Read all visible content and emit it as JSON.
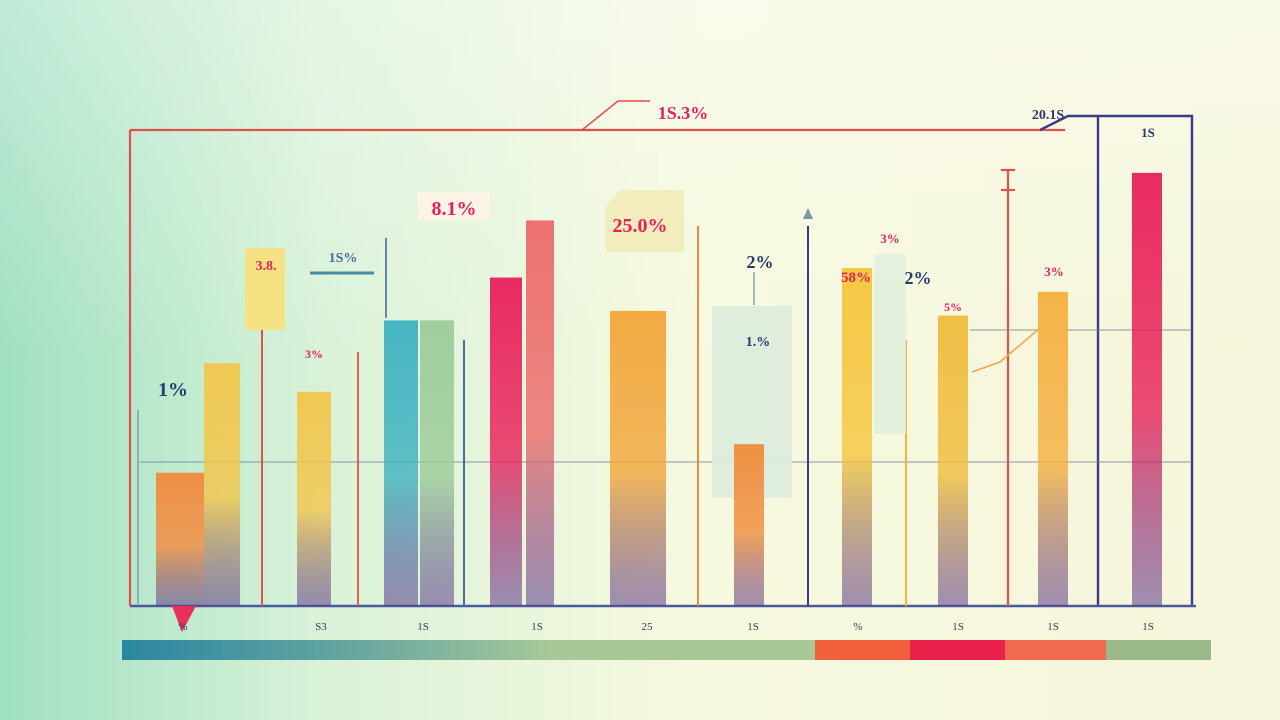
{
  "chart_data": {
    "type": "bar",
    "title": "",
    "xlabel": "",
    "ylabel": "",
    "ylim": [
      0,
      100
    ],
    "grid": false,
    "legend": "none",
    "x_tick_labels": [
      "%",
      "S3",
      "1S",
      "1S",
      "25",
      "1S",
      "%",
      "1S",
      "1S"
    ],
    "bars": [
      {
        "value": 28,
        "color": "#f28a3c"
      },
      {
        "value": 51,
        "color": "#f2c64c"
      },
      {
        "value": 45,
        "color": "#f2c64c"
      },
      {
        "value": 60,
        "color": "#3fb2c0"
      },
      {
        "value": 60,
        "color": "#9ccc9a"
      },
      {
        "value": 69,
        "color": "#e8205a"
      },
      {
        "value": 81,
        "color": "#ec6a6a"
      },
      {
        "value": 62,
        "color": "#f2a63a"
      },
      {
        "value": 34,
        "color": "#f08c3c"
      },
      {
        "value": 71,
        "color": "#f5c63c"
      },
      {
        "value": 61,
        "color": "#f0bc3c"
      },
      {
        "value": 66,
        "color": "#f5b040"
      },
      {
        "value": 91,
        "color": "#e8205a"
      }
    ],
    "annotations": [
      {
        "text": "1%",
        "color": "#2a3a6a"
      },
      {
        "text": "3.8.",
        "color": "#e8205a"
      },
      {
        "text": "1S%",
        "color": "#4a6aa0"
      },
      {
        "text": "3%",
        "color": "#e8205a"
      },
      {
        "text": "8.1%",
        "color": "#e8205a"
      },
      {
        "text": "1S.3%",
        "color": "#e8205a"
      },
      {
        "text": "25.0%",
        "color": "#e8205a"
      },
      {
        "text": "2%",
        "color": "#2a3a6a"
      },
      {
        "text": "1.%",
        "color": "#2a3a6a"
      },
      {
        "text": "58%",
        "color": "#e8205a"
      },
      {
        "text": "3%",
        "color": "#e8205a"
      },
      {
        "text": "2%",
        "color": "#2a3a6a"
      },
      {
        "text": "5%",
        "color": "#e8205a"
      },
      {
        "text": "3%",
        "color": "#e8205a"
      },
      {
        "text": "20.1S",
        "color": "#2a3a6a"
      },
      {
        "text": "1S",
        "color": "#2a3a6a"
      }
    ],
    "bottom_bar_colors": [
      "#2a8aa0",
      "#f0603c",
      "#e8204a",
      "#f06a50",
      "#9ab88a"
    ]
  }
}
